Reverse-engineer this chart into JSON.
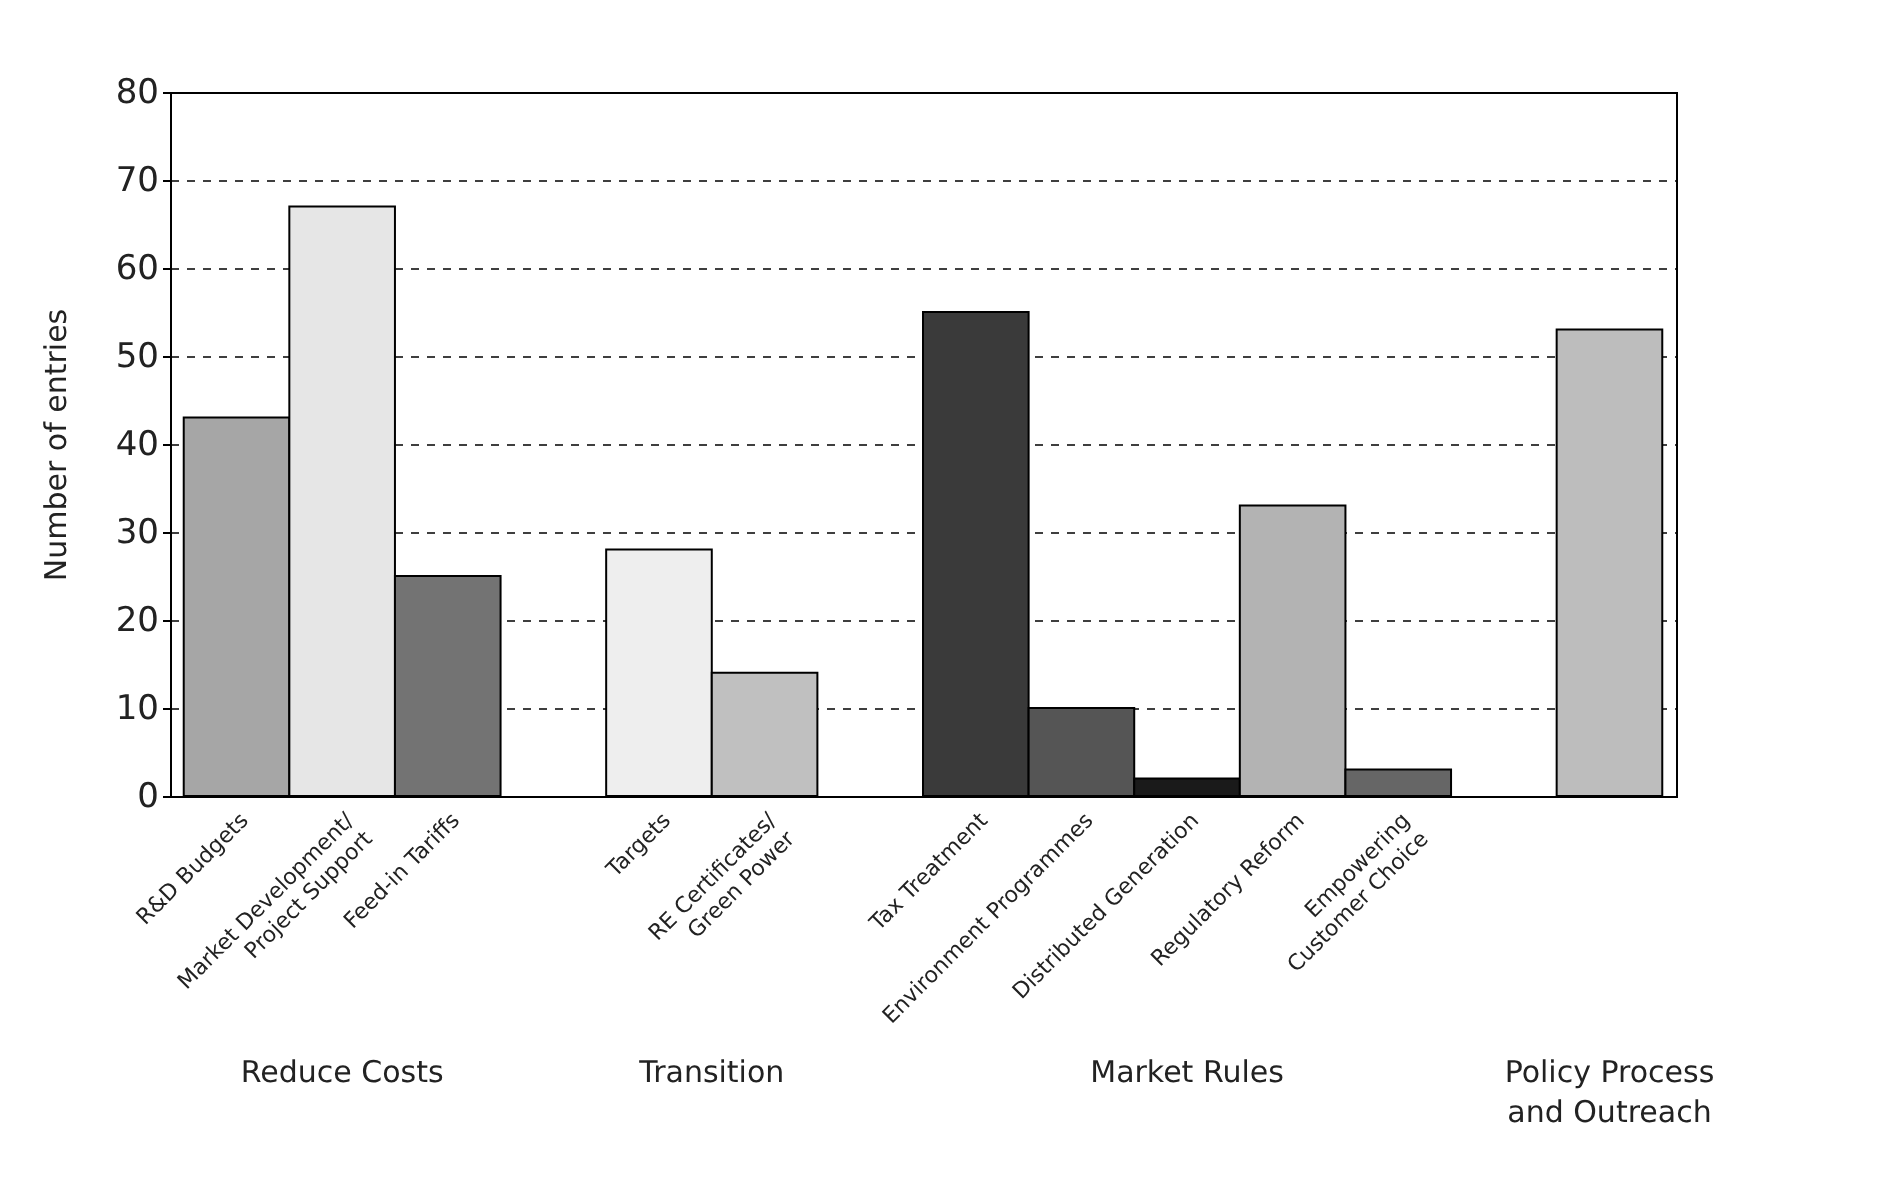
{
  "chart_data": {
    "type": "bar",
    "ylabel": "Number of entries",
    "categories": [
      "R&D Budgets",
      "Market Development/\nProject Support",
      "Feed-in Tariffs",
      null,
      "Targets",
      "RE Certificates/\nGreen Power",
      null,
      "Tax Treatment",
      "Environment Programmes",
      "Distributed Generation",
      "Regulatory Reform",
      "Empowering\nCustomer Choice",
      null,
      null
    ],
    "values": [
      43,
      67,
      25,
      null,
      28,
      14,
      null,
      55,
      10,
      2,
      33,
      3,
      null,
      53
    ],
    "colors": [
      "#a6a6a6",
      "#e6e6e6",
      "#737373",
      null,
      "#eeeeee",
      "#c0c0c0",
      null,
      "#3a3a3a",
      "#555555",
      "#1a1a1a",
      "#b3b3b3",
      "#666666",
      null,
      "#bdbdbd"
    ],
    "annotations": [
      "Reduce Costs",
      "Transition",
      "Market Rules",
      "Policy Process\nand Outreach"
    ],
    "ylim": [
      0,
      80
    ],
    "yticks": [
      0,
      10,
      20,
      30,
      40,
      50,
      60,
      70,
      80
    ],
    "grid": "y",
    "line_style": "dashed"
  }
}
